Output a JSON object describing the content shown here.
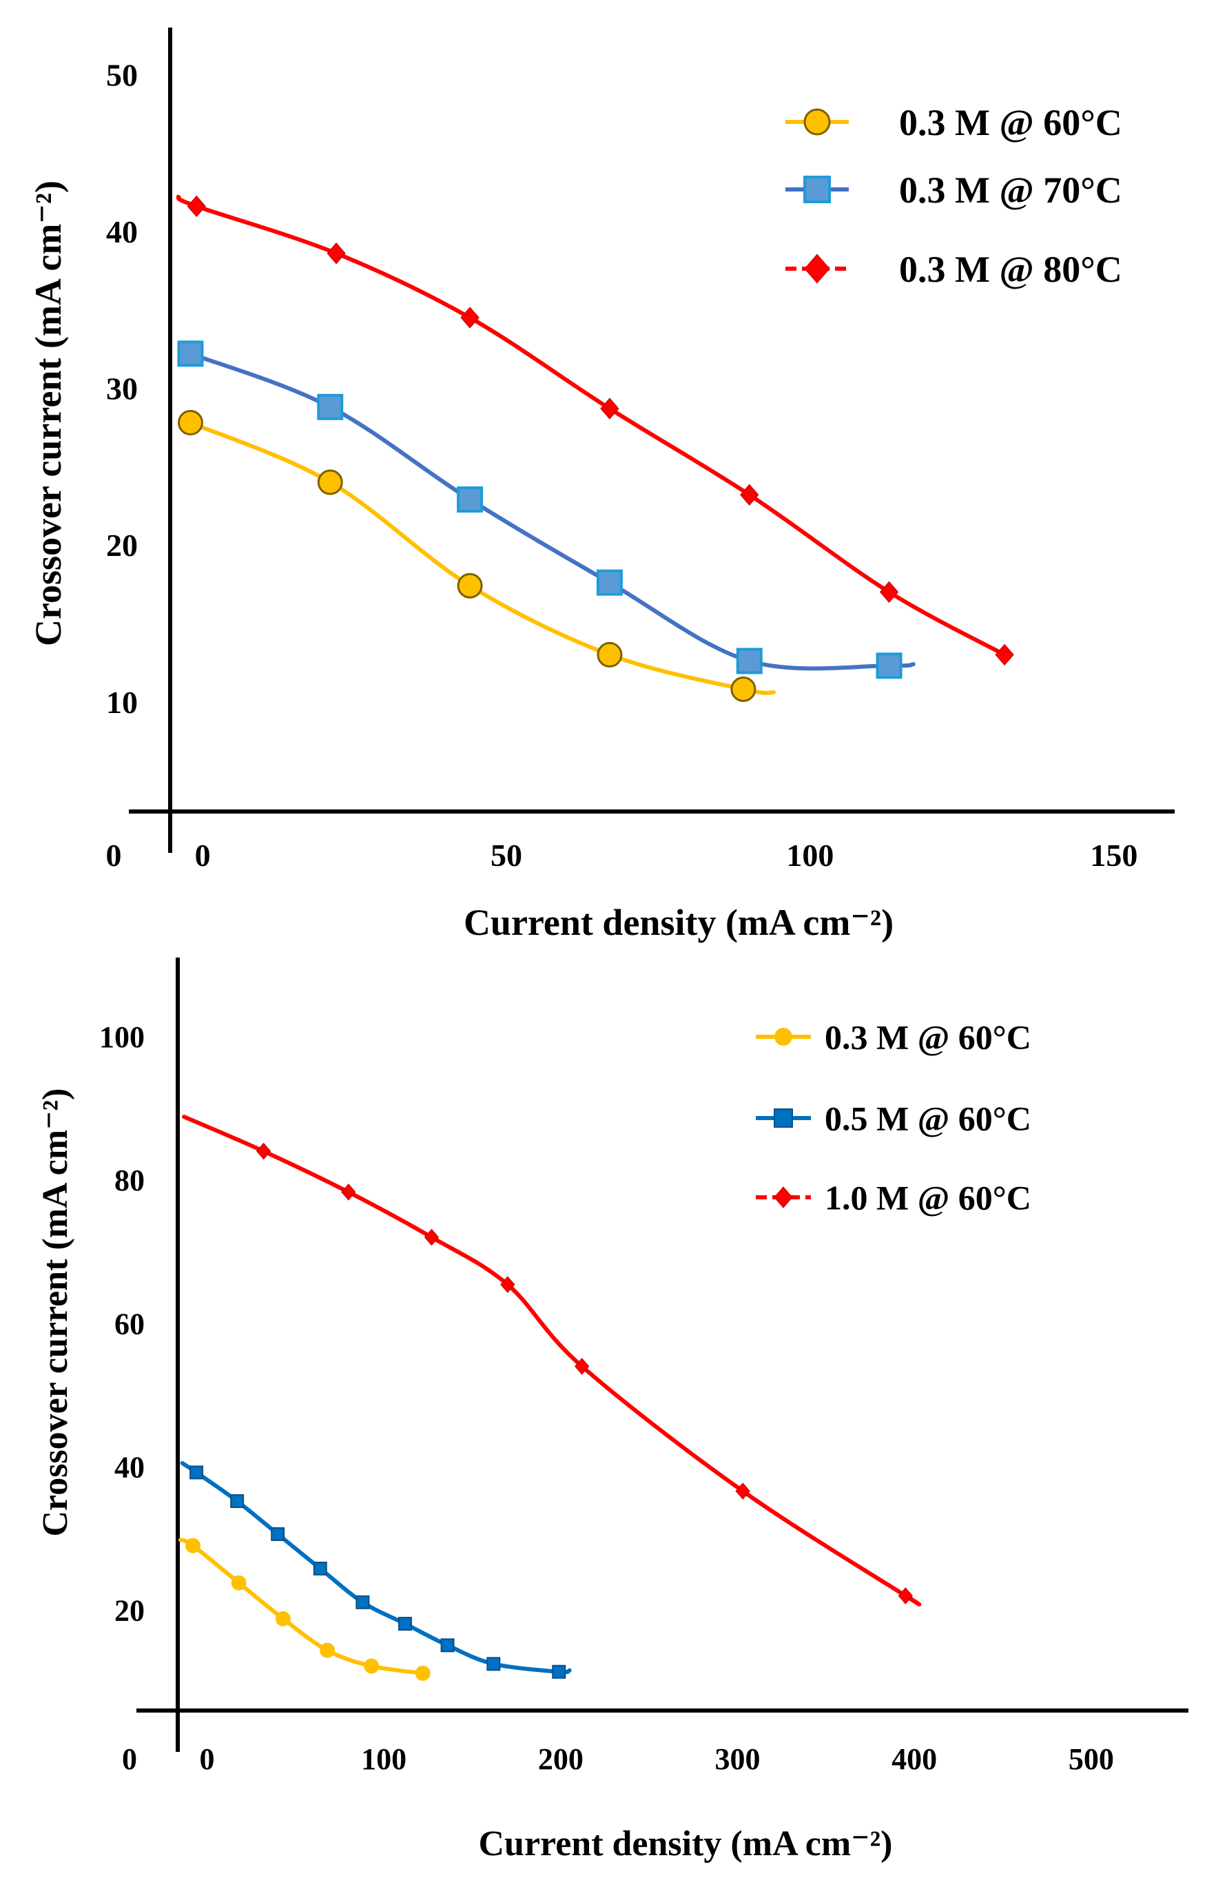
{
  "chart_data": [
    {
      "type": "line",
      "title": "",
      "xlabel": "Current density (mA cm⁻²)",
      "ylabel": "Crossover current (mA cm⁻²)",
      "xlim": [
        -5,
        160
      ],
      "ylim": [
        3,
        53
      ],
      "origin_label": "0",
      "xticks": [
        0,
        50,
        100,
        150
      ],
      "yticks": [
        10,
        20,
        30,
        40,
        50
      ],
      "legend_position": "top-right",
      "series": [
        {
          "name": "0.3 M @ 60°C",
          "color": "#FFC000",
          "marker": "circle",
          "x": [
            -2,
            21,
            44,
            67,
            89
          ],
          "y": [
            27.8,
            24.0,
            17.4,
            13.0,
            10.8
          ],
          "curve_start": -2,
          "curve_end": [
            94,
            10.6
          ]
        },
        {
          "name": "0.3 M @ 70°C",
          "color": "#4472C4",
          "marker": "square",
          "x": [
            -2,
            21,
            44,
            67,
            90,
            113
          ],
          "y": [
            32.2,
            28.8,
            22.9,
            17.6,
            12.6,
            12.3
          ],
          "curve_start": -2,
          "curve_end": [
            117,
            12.4
          ]
        },
        {
          "name": "0.3 M @ 80°C",
          "color": "#FF0000",
          "marker": "diamond",
          "x": [
            -1,
            22,
            44,
            67,
            90,
            113,
            132
          ],
          "y": [
            41.6,
            38.6,
            34.5,
            28.7,
            23.2,
            17.0,
            13.0
          ],
          "curve_start": [
            -4,
            42.2
          ],
          "curve_end": [
            132,
            13.0
          ]
        }
      ]
    },
    {
      "type": "line",
      "title": "",
      "xlabel": "Current density (mA cm⁻²)",
      "ylabel": "Crossover current (mA cm⁻²)",
      "xlim": [
        -15,
        555
      ],
      "ylim": [
        6,
        111
      ],
      "origin_label": "0",
      "xticks": [
        0,
        100,
        200,
        300,
        400,
        500
      ],
      "yticks": [
        20,
        40,
        60,
        80,
        100
      ],
      "legend_position": "top-right",
      "series": [
        {
          "name": "0.3 M @ 60°C",
          "color": "#FFC000",
          "marker": "circle",
          "x": [
            -8,
            18,
            43,
            68,
            93,
            122
          ],
          "y": [
            29.0,
            23.8,
            18.8,
            14.4,
            12.2,
            11.2
          ],
          "curve_start": [
            -15,
            29.8
          ],
          "curve_end": [
            122,
            11.2
          ]
        },
        {
          "name": "0.5 M @ 60°C",
          "color": "#0070C0",
          "marker": "square",
          "x": [
            -6,
            17,
            40,
            64,
            88,
            112,
            136,
            162,
            199
          ],
          "y": [
            39.2,
            35.2,
            30.6,
            25.8,
            21.1,
            18.1,
            15.1,
            12.5,
            11.4
          ],
          "curve_start": [
            -14,
            40.5
          ],
          "curve_end": [
            205,
            11.6
          ]
        },
        {
          "name": "1.0 M @ 60°C",
          "color": "#FF0000",
          "marker": "diamond",
          "x": [
            32,
            80,
            127,
            170,
            212,
            303,
            395
          ],
          "y": [
            84.0,
            78.3,
            72.0,
            65.4,
            54.0,
            36.6,
            22.0
          ],
          "curve_start": [
            -13,
            88.8
          ],
          "curve_end": [
            398,
            21.6
          ]
        }
      ]
    }
  ]
}
